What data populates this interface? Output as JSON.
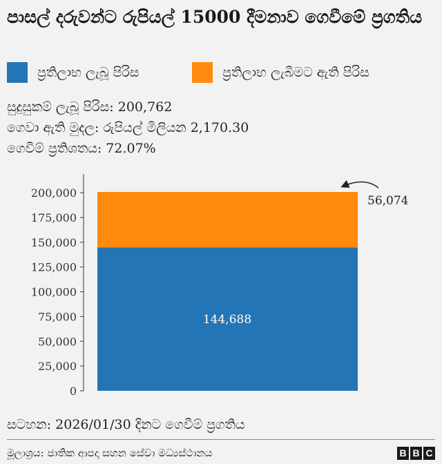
{
  "title": "පාසල් දරුවන්ට රුපියල් 15000 දීමනාව ගෙවීමේ ප්‍රගතිය",
  "legend": [
    {
      "label": "ප්‍රතිලාභ ලැබූ පිරිස",
      "color": "#2475b5"
    },
    {
      "label": "ප්‍රතිලාභ ලැබීමට ඇති පිරිස",
      "color": "#ff8a0d"
    }
  ],
  "stats": {
    "eligible": "සුදුසුකම් ලැබූ පිරිස: 200,762",
    "paid": "ගෙවා ඇති මුදල: රුපියල් මිලියන 2,170.30",
    "rate": "ගෙවීම් ප්‍රතිශතය: 72.07%"
  },
  "chart_data": {
    "type": "bar",
    "stacked": true,
    "categories": [
      ""
    ],
    "series": [
      {
        "name": "ප්‍රතිලාභ ලැබූ පිරිස",
        "values": [
          144688
        ],
        "color": "#2475b5",
        "label": "144,688"
      },
      {
        "name": "ප්‍රතිලාභ ලැබීමට ඇති පිරිස",
        "values": [
          56074
        ],
        "color": "#ff8a0d",
        "label": "56,074"
      }
    ],
    "ylim": [
      0,
      200762
    ],
    "yticks": [
      0,
      25000,
      50000,
      75000,
      100000,
      125000,
      150000,
      175000,
      200000
    ],
    "ytick_labels": [
      "0",
      "25,000",
      "50,000",
      "75,000",
      "100,000",
      "125,000",
      "150,000",
      "175,000",
      "200,000"
    ],
    "grid": false,
    "legend_position": "top"
  },
  "note": "සටහන: 2026/01/30 දිනට ගෙවීම් ප්‍රගතිය",
  "source": "මූලාශ්‍රය: ජාතික ආපදා සහන සේවා මධ්‍යස්ථානය",
  "brand": {
    "letters": [
      "B",
      "B",
      "C"
    ]
  }
}
